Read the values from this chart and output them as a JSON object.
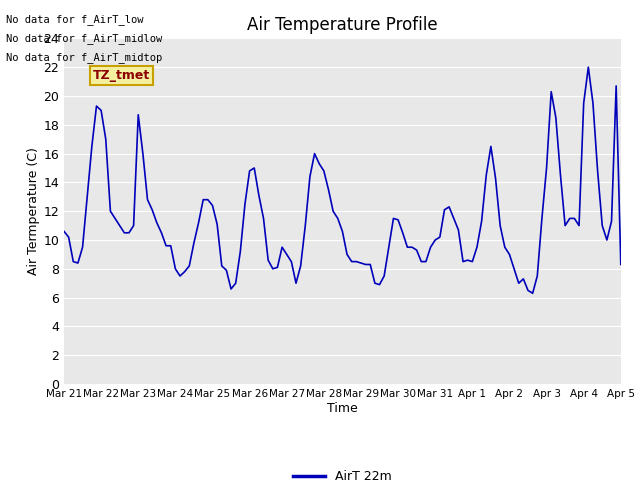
{
  "title": "Air Temperature Profile",
  "xlabel": "Time",
  "ylabel": "Air Termperature (C)",
  "legend_label": "AirT 22m",
  "line_color": "#0000bb",
  "fig_bg_color": "#ffffff",
  "plot_bg_color": "#e8e8e8",
  "ylim": [
    0,
    24
  ],
  "yticks": [
    0,
    2,
    4,
    6,
    8,
    10,
    12,
    14,
    16,
    18,
    20,
    22,
    24
  ],
  "no_data_texts": [
    "No data for f_AirT_low",
    "No data for f_AirT_midlow",
    "No data for f_AirT_midtop"
  ],
  "tz_label": "TZ_tmet",
  "xtick_labels": [
    "Mar 21",
    "Mar 22",
    "Mar 23",
    "Mar 24",
    "Mar 25",
    "Mar 26",
    "Mar 27",
    "Mar 28",
    "Mar 29",
    "Mar 30",
    "Mar 31",
    "Apr 1",
    "Apr 2",
    "Apr 3",
    "Apr 4",
    "Apr 5"
  ],
  "x_values": [
    0.0,
    0.125,
    0.25,
    0.375,
    0.5,
    0.625,
    0.75,
    0.875,
    1.0,
    1.125,
    1.25,
    1.375,
    1.5,
    1.625,
    1.75,
    1.875,
    2.0,
    2.125,
    2.25,
    2.375,
    2.5,
    2.625,
    2.75,
    2.875,
    3.0,
    3.125,
    3.25,
    3.375,
    3.5,
    3.625,
    3.75,
    3.875,
    4.0,
    4.125,
    4.25,
    4.375,
    4.5,
    4.625,
    4.75,
    4.875,
    5.0,
    5.125,
    5.25,
    5.375,
    5.5,
    5.625,
    5.75,
    5.875,
    6.0,
    6.125,
    6.25,
    6.375,
    6.5,
    6.625,
    6.75,
    6.875,
    7.0,
    7.125,
    7.25,
    7.375,
    7.5,
    7.625,
    7.75,
    7.875,
    8.0,
    8.125,
    8.25,
    8.375,
    8.5,
    8.625,
    8.75,
    8.875,
    9.0,
    9.125,
    9.25,
    9.375,
    9.5,
    9.625,
    9.75,
    9.875,
    10.0,
    10.125,
    10.25,
    10.375,
    10.5,
    10.625,
    10.75,
    10.875,
    11.0,
    11.125,
    11.25,
    11.375,
    11.5,
    11.625,
    11.75,
    11.875,
    12.0,
    12.125,
    12.25,
    12.375,
    12.5,
    12.625,
    12.75,
    12.875,
    13.0,
    13.125,
    13.25,
    13.375,
    13.5,
    13.625,
    13.75,
    13.875,
    14.0,
    14.125,
    14.25,
    14.375,
    14.5,
    14.625,
    14.75,
    14.875,
    15.0
  ],
  "y_values": [
    10.6,
    10.2,
    8.5,
    8.4,
    9.5,
    13.0,
    16.5,
    19.3,
    19.0,
    17.0,
    12.0,
    11.5,
    11.0,
    10.5,
    10.5,
    11.0,
    18.7,
    16.0,
    12.8,
    12.1,
    11.2,
    10.5,
    9.6,
    9.6,
    8.0,
    7.5,
    7.8,
    8.2,
    9.8,
    11.2,
    12.8,
    12.8,
    12.4,
    11.1,
    8.2,
    7.9,
    6.6,
    7.0,
    9.2,
    12.5,
    14.8,
    15.0,
    13.1,
    11.5,
    8.6,
    8.0,
    8.1,
    9.5,
    9.0,
    8.5,
    7.0,
    8.2,
    11.0,
    14.4,
    16.0,
    15.3,
    14.8,
    13.5,
    12.0,
    11.5,
    10.6,
    9.0,
    8.5,
    8.5,
    8.4,
    8.3,
    8.3,
    7.0,
    6.9,
    7.5,
    9.5,
    11.5,
    11.4,
    10.5,
    9.5,
    9.5,
    9.3,
    8.5,
    8.5,
    9.5,
    10.0,
    10.2,
    12.1,
    12.3,
    11.5,
    10.7,
    8.5,
    8.6,
    8.5,
    9.5,
    11.3,
    14.5,
    16.5,
    14.3,
    11.0,
    9.5,
    9.0,
    8.0,
    7.0,
    7.3,
    6.5,
    6.3,
    7.5,
    11.5,
    15.0,
    20.3,
    18.5,
    14.5,
    11.0,
    11.5,
    11.5,
    11.0,
    19.5,
    22.0,
    19.5,
    14.8,
    11.0,
    10.0,
    11.3,
    20.7,
    8.3
  ]
}
